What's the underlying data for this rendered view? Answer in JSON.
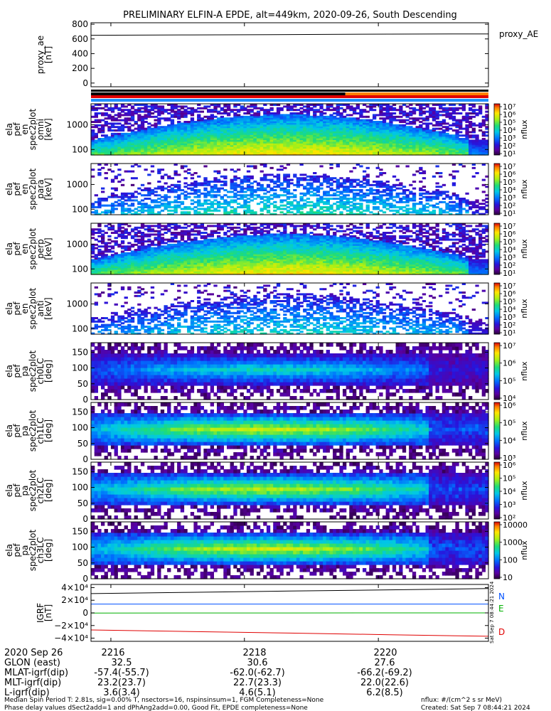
{
  "title": "PRELIMINARY ELFIN-A EPDE, alt=449km, 2020-09-26, South Descending",
  "colors": {
    "black": "#000000",
    "red": "#e00000",
    "blue": "#0050ff",
    "green": "#00b000",
    "orange": "#ff8000",
    "lightblue": "#1e90ff"
  },
  "chart_data": [
    {
      "id": "proxy_ae",
      "type": "line",
      "ylabel": [
        "proxy_ae",
        "[nT]"
      ],
      "legend": "proxy_AE",
      "ylim": [
        -50,
        820
      ],
      "yticks": [
        "800",
        "600",
        "400",
        "200",
        "0"
      ],
      "ytick_values": [
        800,
        600,
        400,
        200,
        0
      ],
      "series": [
        {
          "values": [
            650,
            655,
            660,
            665,
            668
          ]
        }
      ]
    },
    {
      "id": "spec_en_omni",
      "type": "heatmap",
      "ylabel": [
        "ela",
        "pef",
        "en",
        "spec2plot",
        "omni",
        "[keV]"
      ],
      "yscale": "log",
      "ylim": [
        60,
        7000
      ],
      "yticks": [
        "1000",
        "100"
      ],
      "ytick_values": [
        1000,
        100
      ],
      "colorbar": {
        "label": "nflux",
        "scale": "log",
        "ticks": [
          "10⁷",
          "10⁶",
          "10⁵",
          "10⁴",
          "10³",
          "10²",
          "10¹"
        ]
      }
    },
    {
      "id": "spec_en_para",
      "type": "heatmap",
      "ylabel": [
        "ela",
        "pef",
        "en",
        "spec2plot",
        "para",
        "[keV]"
      ],
      "yscale": "log",
      "ylim": [
        60,
        7000
      ],
      "yticks": [
        "1000",
        "100"
      ],
      "ytick_values": [
        1000,
        100
      ],
      "colorbar": {
        "label": "nflux",
        "scale": "log",
        "ticks": [
          "10⁷",
          "10⁶",
          "10⁵",
          "10⁴",
          "10³",
          "10²",
          "10¹"
        ]
      }
    },
    {
      "id": "spec_en_perp",
      "type": "heatmap",
      "ylabel": [
        "ela",
        "pef",
        "en",
        "spec2plot",
        "perp",
        "[keV]"
      ],
      "yscale": "log",
      "ylim": [
        60,
        7000
      ],
      "yticks": [
        "1000",
        "100"
      ],
      "ytick_values": [
        1000,
        100
      ],
      "colorbar": {
        "label": "nflux",
        "scale": "log",
        "ticks": [
          "10⁷",
          "10⁶",
          "10⁵",
          "10⁴",
          "10³",
          "10²",
          "10¹"
        ]
      }
    },
    {
      "id": "spec_en_anti",
      "type": "heatmap",
      "ylabel": [
        "ela",
        "pef",
        "en",
        "spec2plot",
        "anti",
        "[keV]"
      ],
      "yscale": "log",
      "ylim": [
        60,
        7000
      ],
      "yticks": [
        "1000",
        "100"
      ],
      "ytick_values": [
        1000,
        100
      ],
      "colorbar": {
        "label": "nflux",
        "scale": "log",
        "ticks": [
          "10⁷",
          "10⁶",
          "10⁵",
          "10⁴",
          "10³",
          "10²",
          "10¹"
        ]
      }
    },
    {
      "id": "spec_ch0LC",
      "type": "heatmap",
      "ylabel": [
        "ela",
        "pef",
        "pa",
        "spec2plot",
        "ch0LC",
        "[deg]"
      ],
      "ylim": [
        0,
        180
      ],
      "yticks": [
        "150",
        "100",
        "50",
        "0"
      ],
      "ytick_values": [
        150,
        100,
        50,
        0
      ],
      "colorbar": {
        "label": "nflux",
        "scale": "log",
        "ticks": [
          "10⁷",
          "10⁶",
          "10⁵",
          "10⁴"
        ]
      }
    },
    {
      "id": "spec_ch1LC",
      "type": "heatmap",
      "ylabel": [
        "ela",
        "pef",
        "pa",
        "spec2plot",
        "ch1LC",
        "[deg]"
      ],
      "ylim": [
        0,
        180
      ],
      "yticks": [
        "150",
        "100",
        "50",
        "0"
      ],
      "ytick_values": [
        150,
        100,
        50,
        0
      ],
      "colorbar": {
        "label": "nflux",
        "scale": "log",
        "ticks": [
          "10⁶",
          "10⁵",
          "10⁴",
          "10³"
        ]
      }
    },
    {
      "id": "spec_ch2LC",
      "type": "heatmap",
      "ylabel": [
        "ela",
        "pef",
        "pa",
        "spec2plot",
        "ch2LC",
        "[deg]"
      ],
      "ylim": [
        0,
        180
      ],
      "yticks": [
        "150",
        "100",
        "50",
        "0"
      ],
      "ytick_values": [
        150,
        100,
        50,
        0
      ],
      "colorbar": {
        "label": "nflux",
        "scale": "log",
        "ticks": [
          "10⁶",
          "10⁵",
          "10⁴",
          "10³",
          "10²"
        ]
      }
    },
    {
      "id": "spec_ch3LC",
      "type": "heatmap",
      "ylabel": [
        "ela",
        "pef",
        "pa",
        "spec2plot",
        "ch3LC",
        "[deg]"
      ],
      "ylim": [
        0,
        180
      ],
      "yticks": [
        "150",
        "100",
        "50",
        "0"
      ],
      "ytick_values": [
        150,
        100,
        50,
        0
      ],
      "colorbar": {
        "label": "nflux",
        "scale": "log",
        "ticks": [
          "10000",
          "1000",
          "100",
          "10"
        ]
      }
    },
    {
      "id": "igrf",
      "type": "line",
      "ylabel": [
        "IGRF",
        "[nT]"
      ],
      "ylim": [
        -45000,
        45000
      ],
      "yticks": [
        "4×10⁴",
        "2×10⁴",
        "0",
        "−2×10⁴",
        "−4×10⁴"
      ],
      "ytick_values": [
        40000,
        20000,
        0,
        -20000,
        -40000
      ],
      "series": [
        {
          "name": "N",
          "color": "#0050ff",
          "values": [
            14000,
            14000,
            14000,
            14000,
            14000
          ]
        },
        {
          "name": "E",
          "color": "#00b000",
          "values": [
            -200,
            -150,
            -100,
            -50,
            0
          ]
        },
        {
          "name": "D",
          "color": "#e00000",
          "values": [
            -27000,
            -29500,
            -32000,
            -34500,
            -37000
          ]
        },
        {
          "name": "",
          "color": "#000000",
          "values": [
            30500,
            32500,
            34500,
            36500,
            38500
          ]
        }
      ]
    }
  ],
  "bars": {
    "top_color": "#000000",
    "split_fraction": 0.64,
    "upper_left": "#000000",
    "upper_right": "#ff8000",
    "lower_left": "#e00000",
    "lower_right": "#e00000",
    "bottom": "#1e90ff"
  },
  "timestamp_vertical": "Sat Sep  7 08:44:21 2024",
  "xaxis": {
    "date_label": "2020 Sep 26",
    "ticks": [
      "2216",
      "2218",
      "2220"
    ],
    "tick_fractions": [
      0.05,
      0.386,
      0.723
    ]
  },
  "ephem": {
    "rows": [
      {
        "label": "GLON (east)",
        "values": [
          "32.5",
          "30.6",
          "27.6"
        ]
      },
      {
        "label": "MLAT-igrf(dip)",
        "values": [
          "-57.4(-55.7)",
          "-62.0(-62.7)",
          "-66.2(-69.2)"
        ]
      },
      {
        "label": "MLT-igrf(dip)",
        "values": [
          "23.2(23.7)",
          "22.7(23.3)",
          "22.0(22.6)"
        ]
      },
      {
        "label": "L-igrf(dip)",
        "values": [
          "3.6(3.4)",
          "4.6(5.1)",
          "6.2(8.5)"
        ]
      }
    ]
  },
  "footer": {
    "line1": "Median Spin Period T: 2.81s, sig=0.00% T, nsectors=16, nspinsinsum=1, FGM Completeness=None",
    "line2": "Phase delay values dSect2add=1 and dPhAng2add=0.00, Good Fit, EPDE completeness=None",
    "units": "nflux: #/(cm^2 s sr MeV)",
    "created": "Created: Sat Sep  7 08:44:21 2024"
  }
}
